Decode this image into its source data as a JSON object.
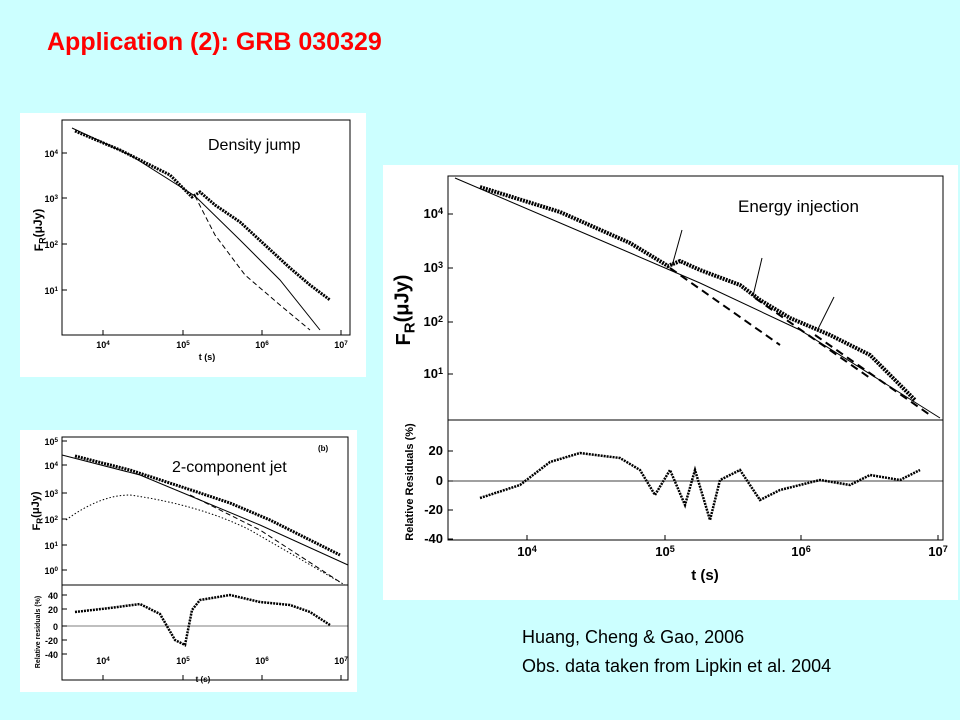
{
  "header": {
    "title": "Application (2): GRB 030329"
  },
  "panels": [
    {
      "label": "Density jump",
      "y_label": {
        "main": "F",
        "sub": "R",
        "rest": "(μJy)"
      },
      "x_label": "t (s)",
      "yticks": [
        {
          "mantissa": "10",
          "exponent": "4"
        },
        {
          "mantissa": "10",
          "exponent": "3"
        },
        {
          "mantissa": "10",
          "exponent": "2"
        },
        {
          "mantissa": "10",
          "exponent": "1"
        }
      ],
      "xticks": [
        {
          "mantissa": "10",
          "exponent": "4"
        },
        {
          "mantissa": "10",
          "exponent": "5"
        },
        {
          "mantissa": "10",
          "exponent": "6"
        },
        {
          "mantissa": "10",
          "exponent": "7"
        }
      ]
    },
    {
      "label": "2-component jet",
      "tag": "(b)",
      "y_label": {
        "main": "F",
        "sub": "R",
        "rest": "(μJy)"
      },
      "residual_label": "Relative residuals (%)",
      "x_label": "t (s)",
      "yticks": [
        {
          "mantissa": "10",
          "exponent": "5"
        },
        {
          "mantissa": "10",
          "exponent": "4"
        },
        {
          "mantissa": "10",
          "exponent": "3"
        },
        {
          "mantissa": "10",
          "exponent": "2"
        },
        {
          "mantissa": "10",
          "exponent": "1"
        },
        {
          "mantissa": "10",
          "exponent": "0"
        }
      ],
      "residual_ticks": [
        "40",
        "20",
        "0",
        "-20",
        "-40"
      ],
      "xticks": [
        {
          "mantissa": "10",
          "exponent": "4"
        },
        {
          "mantissa": "10",
          "exponent": "5"
        },
        {
          "mantissa": "10",
          "exponent": "6"
        },
        {
          "mantissa": "10",
          "exponent": "7"
        }
      ]
    },
    {
      "label": "Energy injection",
      "y_label": {
        "main": "F",
        "sub": "R",
        "rest": "(μJy)"
      },
      "residual_label": "Relative Residuals (%)",
      "x_label": "t (s)",
      "yticks": [
        {
          "mantissa": "10",
          "exponent": "4"
        },
        {
          "mantissa": "10",
          "exponent": "3"
        },
        {
          "mantissa": "10",
          "exponent": "2"
        },
        {
          "mantissa": "10",
          "exponent": "1"
        }
      ],
      "residual_ticks": [
        "20",
        "0",
        "-20",
        "-40"
      ],
      "xticks": [
        {
          "mantissa": "10",
          "exponent": "4"
        },
        {
          "mantissa": "10",
          "exponent": "5"
        },
        {
          "mantissa": "10",
          "exponent": "6"
        },
        {
          "mantissa": "10",
          "exponent": "7"
        }
      ]
    }
  ],
  "citation": {
    "line1": "Huang, Cheng & Gao, 2006",
    "line2": "Obs. data taken from Lipkin et al. 2004"
  }
}
